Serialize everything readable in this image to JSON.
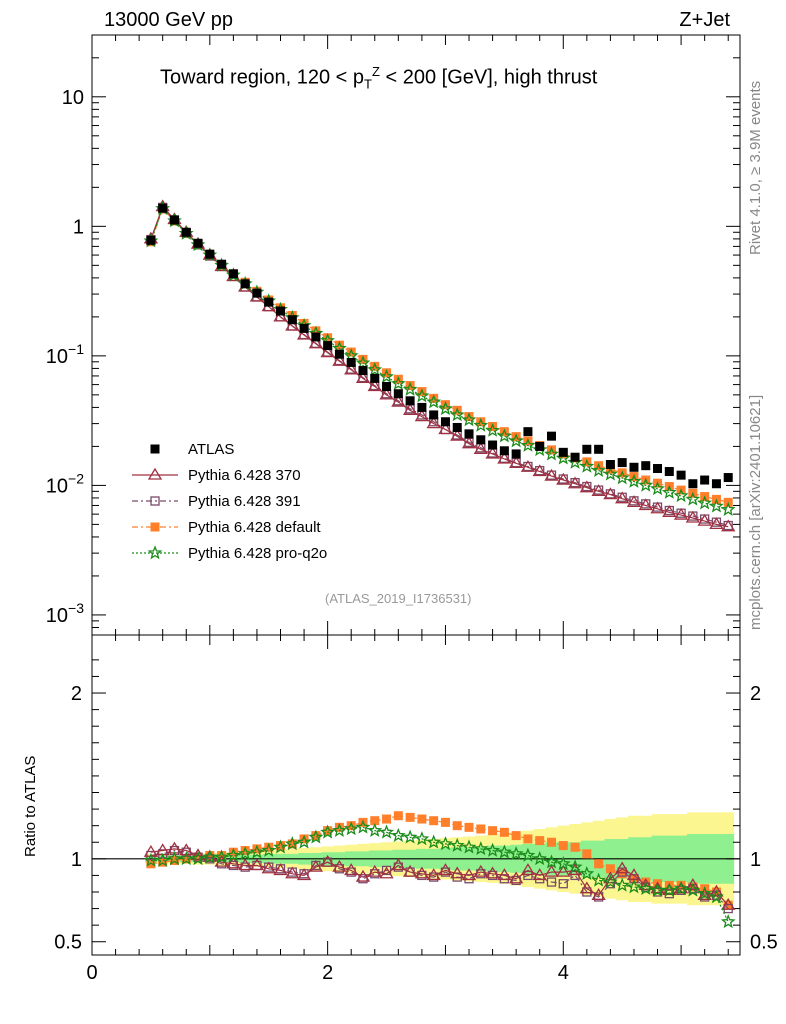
{
  "header": {
    "energy": "13000 GeV pp",
    "process": "Z+Jet",
    "title": "Toward region, 120 < p",
    "title_sub": "T",
    "title_sup": "Z",
    "title_rest": " < 200 [GeV], high thrust"
  },
  "side": {
    "rivet": "Rivet 4.1.0, ≥ 3.9M events",
    "mcplots": "mcplots.cern.ch [arXiv:2401.10621]"
  },
  "watermark": "(ATLAS_2019_I1736531)",
  "ratio_ylabel": "Ratio to ATLAS",
  "legend": [
    {
      "label": "ATLAS",
      "color": "#000000",
      "marker": "square-filled"
    },
    {
      "label": "Pythia 6.428 370",
      "color": "#a03040",
      "marker": "triangle-open"
    },
    {
      "label": "Pythia 6.428 391",
      "color": "#7a4a6a",
      "marker": "square-open"
    },
    {
      "label": "Pythia 6.428 default",
      "color": "#ff7f2a",
      "marker": "square-filled"
    },
    {
      "label": "Pythia 6.428 pro-q2o",
      "color": "#1a8c1a",
      "marker": "star"
    }
  ],
  "chart_data": {
    "type": "scatter",
    "main": {
      "yscale": "log",
      "ylim": [
        0.0007,
        30
      ],
      "xlim": [
        0,
        5.5
      ],
      "ytick_labels": [
        "10",
        "1",
        "10−1",
        "10−2",
        "10−3"
      ],
      "x": [
        0.5,
        0.6,
        0.7,
        0.8,
        0.9,
        1.0,
        1.1,
        1.2,
        1.3,
        1.4,
        1.5,
        1.6,
        1.7,
        1.8,
        1.9,
        2.0,
        2.1,
        2.2,
        2.3,
        2.4,
        2.5,
        2.6,
        2.7,
        2.8,
        2.9,
        3.0,
        3.1,
        3.2,
        3.3,
        3.4,
        3.5,
        3.6,
        3.7,
        3.8,
        3.9,
        4.0,
        4.1,
        4.2,
        4.3,
        4.4,
        4.5,
        4.6,
        4.7,
        4.8,
        4.9,
        5.0,
        5.1,
        5.2,
        5.3,
        5.4
      ],
      "series": [
        {
          "name": "ATLAS",
          "values": [
            0.78,
            1.38,
            1.12,
            0.9,
            0.74,
            0.61,
            0.51,
            0.43,
            0.36,
            0.305,
            0.26,
            0.222,
            0.19,
            0.163,
            0.14,
            0.12,
            0.103,
            0.089,
            0.077,
            0.067,
            0.058,
            0.051,
            0.045,
            0.04,
            0.035,
            0.031,
            0.028,
            0.025,
            0.0225,
            0.0205,
            0.0185,
            0.0175,
            0.026,
            0.02,
            0.024,
            0.018,
            0.0165,
            0.019,
            0.019,
            0.0145,
            0.015,
            0.0138,
            0.0142,
            0.0135,
            0.0128,
            0.012,
            0.0103,
            0.011,
            0.0103,
            0.0115
          ]
        },
        {
          "name": "Pythia 6.428 370",
          "values": [
            0.8,
            1.42,
            1.13,
            0.9,
            0.73,
            0.6,
            0.49,
            0.41,
            0.34,
            0.285,
            0.24,
            0.2,
            0.17,
            0.145,
            0.124,
            0.106,
            0.091,
            0.078,
            0.067,
            0.058,
            0.05,
            0.044,
            0.038,
            0.034,
            0.03,
            0.027,
            0.024,
            0.021,
            0.019,
            0.0175,
            0.016,
            0.0148,
            0.0138,
            0.0128,
            0.0118,
            0.011,
            0.0103,
            0.0096,
            0.009,
            0.0085,
            0.0079,
            0.0074,
            0.007,
            0.0066,
            0.0062,
            0.0059,
            0.0056,
            0.0053,
            0.005,
            0.0048
          ]
        },
        {
          "name": "Pythia 6.428 391",
          "values": [
            0.79,
            1.4,
            1.12,
            0.89,
            0.72,
            0.59,
            0.49,
            0.41,
            0.34,
            0.285,
            0.24,
            0.2,
            0.17,
            0.146,
            0.125,
            0.107,
            0.092,
            0.079,
            0.068,
            0.059,
            0.051,
            0.045,
            0.039,
            0.035,
            0.031,
            0.027,
            0.0245,
            0.0215,
            0.0195,
            0.0178,
            0.0162,
            0.015,
            0.014,
            0.013,
            0.012,
            0.0112,
            0.0105,
            0.0098,
            0.0092,
            0.0086,
            0.0081,
            0.0076,
            0.0072,
            0.0068,
            0.0064,
            0.0061,
            0.0058,
            0.0055,
            0.0052,
            0.0049
          ]
        },
        {
          "name": "Pythia 6.428 default",
          "values": [
            0.76,
            1.36,
            1.1,
            0.88,
            0.72,
            0.6,
            0.5,
            0.43,
            0.37,
            0.315,
            0.27,
            0.235,
            0.205,
            0.178,
            0.156,
            0.138,
            0.121,
            0.107,
            0.094,
            0.083,
            0.074,
            0.066,
            0.059,
            0.053,
            0.047,
            0.042,
            0.038,
            0.034,
            0.031,
            0.0285,
            0.026,
            0.0238,
            0.022,
            0.0203,
            0.0188,
            0.0175,
            0.0163,
            0.0152,
            0.0142,
            0.0133,
            0.0125,
            0.0117,
            0.011,
            0.0104,
            0.0098,
            0.0092,
            0.0087,
            0.0082,
            0.0078,
            0.0074
          ]
        },
        {
          "name": "Pythia 6.428 pro-q2o",
          "values": [
            0.77,
            1.37,
            1.1,
            0.88,
            0.72,
            0.6,
            0.5,
            0.42,
            0.36,
            0.31,
            0.265,
            0.228,
            0.197,
            0.171,
            0.149,
            0.131,
            0.114,
            0.1,
            0.088,
            0.078,
            0.069,
            0.061,
            0.055,
            0.049,
            0.044,
            0.039,
            0.035,
            0.032,
            0.029,
            0.0265,
            0.024,
            0.022,
            0.0203,
            0.0188,
            0.0174,
            0.0162,
            0.015,
            0.014,
            0.013,
            0.0122,
            0.0114,
            0.0107,
            0.01,
            0.0094,
            0.0088,
            0.0083,
            0.0078,
            0.0073,
            0.0069,
            0.0065
          ]
        }
      ]
    },
    "ratio": {
      "ylim": [
        0.42,
        2.35
      ],
      "yticks": [
        0.5,
        1,
        2
      ],
      "ytick_labels": [
        "0.5",
        "1",
        "2"
      ],
      "xticks": [
        0,
        2,
        4
      ],
      "xtick_labels": [
        "0",
        "2",
        "4"
      ],
      "band_inner": [
        0.02,
        0.02,
        0.02,
        0.02,
        0.02,
        0.02,
        0.02,
        0.02,
        0.025,
        0.025,
        0.03,
        0.03,
        0.03,
        0.035,
        0.035,
        0.04,
        0.04,
        0.045,
        0.045,
        0.05,
        0.05,
        0.055,
        0.055,
        0.06,
        0.06,
        0.065,
        0.07,
        0.07,
        0.075,
        0.08,
        0.08,
        0.085,
        0.09,
        0.09,
        0.1,
        0.1,
        0.1,
        0.11,
        0.11,
        0.12,
        0.12,
        0.13,
        0.13,
        0.14,
        0.14,
        0.14,
        0.15,
        0.15,
        0.15,
        0.15
      ],
      "band_outer": [
        0.03,
        0.03,
        0.03,
        0.03,
        0.035,
        0.035,
        0.04,
        0.04,
        0.045,
        0.05,
        0.05,
        0.055,
        0.06,
        0.065,
        0.07,
        0.075,
        0.08,
        0.085,
        0.09,
        0.095,
        0.1,
        0.105,
        0.11,
        0.115,
        0.12,
        0.125,
        0.13,
        0.135,
        0.14,
        0.145,
        0.15,
        0.16,
        0.17,
        0.18,
        0.19,
        0.2,
        0.21,
        0.22,
        0.23,
        0.24,
        0.25,
        0.26,
        0.26,
        0.27,
        0.27,
        0.27,
        0.28,
        0.28,
        0.28,
        0.28
      ],
      "series": [
        {
          "name": "Pythia 6.428 370",
          "values": [
            1.04,
            1.05,
            1.06,
            1.05,
            1.02,
            1.01,
            0.98,
            0.97,
            0.96,
            0.96,
            0.94,
            0.93,
            0.91,
            0.9,
            0.95,
            0.98,
            0.95,
            0.93,
            0.89,
            0.92,
            0.91,
            0.96,
            0.92,
            0.91,
            0.9,
            0.93,
            0.91,
            0.9,
            0.92,
            0.91,
            0.9,
            0.88,
            0.93,
            0.9,
            0.92,
            0.92,
            0.93,
            0.82,
            0.78,
            0.88,
            0.94,
            0.9,
            0.84,
            0.82,
            0.81,
            0.82,
            0.84,
            0.78,
            0.8,
            0.72
          ]
        },
        {
          "name": "Pythia 6.428 391",
          "values": [
            1.02,
            1.03,
            1.05,
            1.04,
            1.01,
            1.0,
            0.97,
            0.96,
            0.95,
            0.96,
            0.95,
            0.94,
            0.92,
            0.91,
            0.96,
            0.98,
            0.94,
            0.92,
            0.88,
            0.91,
            0.93,
            0.95,
            0.92,
            0.9,
            0.89,
            0.92,
            0.89,
            0.88,
            0.91,
            0.9,
            0.88,
            0.87,
            0.9,
            0.88,
            0.86,
            0.85,
            0.9,
            0.8,
            0.77,
            0.85,
            0.92,
            0.88,
            0.83,
            0.8,
            0.79,
            0.81,
            0.82,
            0.77,
            0.78,
            0.7
          ]
        },
        {
          "name": "Pythia 6.428 default",
          "values": [
            0.97,
            0.98,
            0.99,
            1.0,
            1.01,
            1.02,
            1.02,
            1.04,
            1.05,
            1.06,
            1.07,
            1.08,
            1.09,
            1.12,
            1.14,
            1.17,
            1.19,
            1.2,
            1.22,
            1.23,
            1.24,
            1.26,
            1.25,
            1.24,
            1.23,
            1.22,
            1.2,
            1.19,
            1.18,
            1.17,
            1.16,
            1.14,
            1.12,
            1.11,
            1.1,
            1.08,
            1.07,
            1.03,
            0.97,
            0.94,
            0.91,
            0.88,
            0.86,
            0.85,
            0.84,
            0.84,
            0.83,
            0.82,
            0.8,
            0.72
          ]
        },
        {
          "name": "Pythia 6.428 pro-q2o",
          "values": [
            0.99,
            0.99,
            1.0,
            1.0,
            1.0,
            1.01,
            1.01,
            1.02,
            1.03,
            1.04,
            1.05,
            1.07,
            1.09,
            1.1,
            1.13,
            1.16,
            1.17,
            1.18,
            1.19,
            1.17,
            1.16,
            1.14,
            1.13,
            1.12,
            1.1,
            1.09,
            1.08,
            1.07,
            1.06,
            1.05,
            1.04,
            1.03,
            1.02,
            1.0,
            0.98,
            0.97,
            0.95,
            0.91,
            0.87,
            0.86,
            0.84,
            0.83,
            0.82,
            0.81,
            0.81,
            0.82,
            0.81,
            0.79,
            0.77,
            0.62
          ]
        }
      ]
    }
  }
}
